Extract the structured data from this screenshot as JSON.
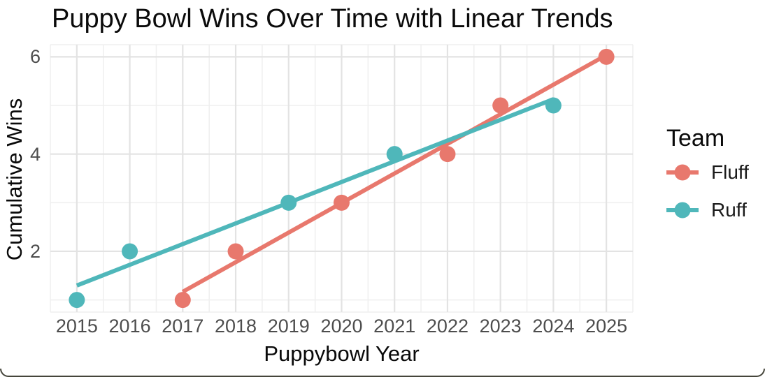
{
  "chart_data": {
    "type": "scatter",
    "title": "Puppy Bowl Wins Over Time with Linear Trends",
    "xlabel": "Puppybowl Year",
    "ylabel": "Cumulative Wins",
    "legend_title": "Team",
    "legend_position": "right",
    "x_ticks": [
      2015,
      2016,
      2017,
      2018,
      2019,
      2020,
      2021,
      2022,
      2023,
      2024,
      2025
    ],
    "y_ticks": [
      2,
      4,
      6
    ],
    "xlim": [
      2014.5,
      2025.5
    ],
    "ylim": [
      0.75,
      6.25
    ],
    "grid": true,
    "trend": "linear fit per series spanning each series x-range, no confidence band",
    "series": [
      {
        "name": "Fluff",
        "color": "#E8786D",
        "points": [
          [
            2017,
            1
          ],
          [
            2018,
            2
          ],
          [
            2020,
            3
          ],
          [
            2022,
            4
          ],
          [
            2023,
            5
          ],
          [
            2025,
            6
          ]
        ]
      },
      {
        "name": "Ruff",
        "color": "#4FB7BA",
        "points": [
          [
            2015,
            1
          ],
          [
            2016,
            2
          ],
          [
            2019,
            3
          ],
          [
            2021,
            4
          ],
          [
            2024,
            5
          ]
        ]
      }
    ]
  }
}
